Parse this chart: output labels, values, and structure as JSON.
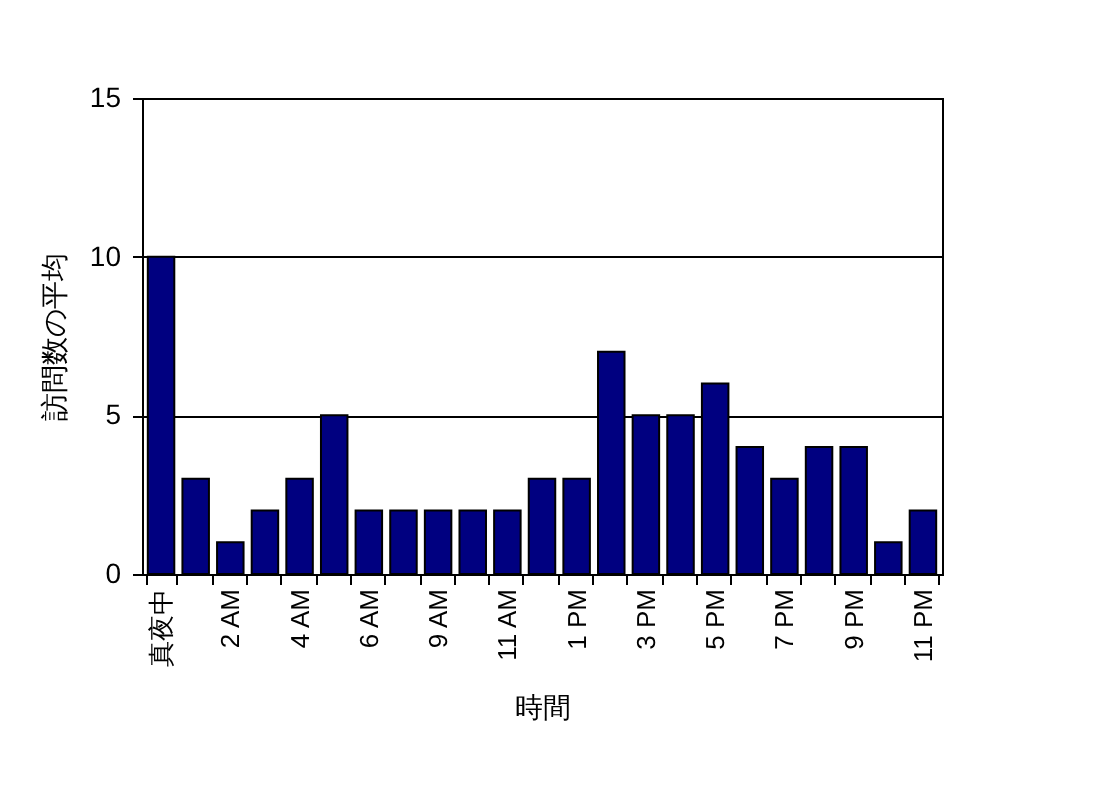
{
  "chart_data": {
    "type": "bar",
    "xlabel": "時間",
    "ylabel": "訪問数の平均",
    "categories": [
      "真夜中",
      null,
      "2 AM",
      null,
      "4 AM",
      null,
      "6 AM",
      null,
      "9 AM",
      null,
      "11 AM",
      null,
      "1 PM",
      null,
      "3 PM",
      null,
      "5 PM",
      null,
      "7 PM",
      null,
      "9 PM",
      null,
      "11 PM"
    ],
    "values": [
      10,
      3,
      1,
      2,
      3,
      5,
      2,
      2,
      2,
      2,
      2,
      3,
      3,
      7,
      5,
      5,
      6,
      4,
      3,
      4,
      4,
      1,
      2
    ],
    "color": "#000080",
    "ylim": [
      0,
      15
    ],
    "yticks": [
      0,
      5,
      10,
      15
    ],
    "grid": "y"
  }
}
